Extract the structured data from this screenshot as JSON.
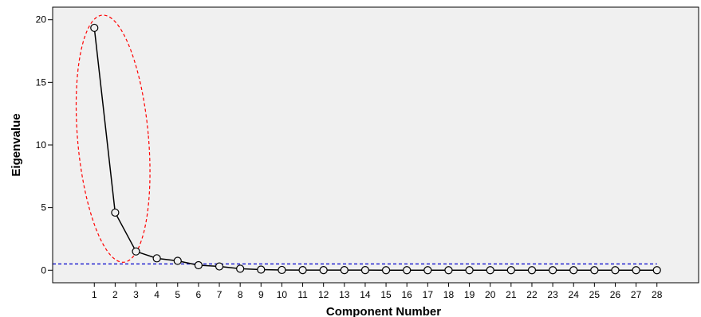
{
  "chart_data": {
    "type": "line",
    "title": "",
    "xlabel": "Component Number",
    "ylabel": "Eigenvalue",
    "x": [
      1,
      2,
      3,
      4,
      5,
      6,
      7,
      8,
      9,
      10,
      11,
      12,
      13,
      14,
      15,
      16,
      17,
      18,
      19,
      20,
      21,
      22,
      23,
      24,
      25,
      26,
      27,
      28
    ],
    "series": [
      {
        "values": [
          19.35,
          4.6,
          1.5,
          0.95,
          0.75,
          0.4,
          0.3,
          0.12,
          0.05,
          0.02,
          0.01,
          0.01,
          0.01,
          0.01,
          0.0,
          0.0,
          0.0,
          0.0,
          0.0,
          0.0,
          0.0,
          0.0,
          0.0,
          0.0,
          0.0,
          0.0,
          0.0,
          0.0
        ],
        "color": "#000000",
        "marker": "open-circle"
      }
    ],
    "xticks": [
      "1",
      "2",
      "3",
      "4",
      "5",
      "6",
      "7",
      "8",
      "9",
      "10",
      "11",
      "12",
      "13",
      "14",
      "15",
      "16",
      "17",
      "18",
      "19",
      "20",
      "21",
      "22",
      "23",
      "24",
      "25",
      "26",
      "27",
      "28"
    ],
    "yticks": [
      0,
      5,
      10,
      15,
      20
    ],
    "ylim": [
      -1,
      21
    ],
    "xlim": [
      -1,
      30
    ],
    "grid": false,
    "background_color": "#f0f0f0",
    "reference_line": {
      "y": 0.5,
      "x_from": -1,
      "x_to": 28,
      "color": "#0000cc",
      "style": "dashed"
    },
    "highlight_ellipse": {
      "x_from": 0.2,
      "x_to": 3.6,
      "y_from": 0.6,
      "y_to": 20.4,
      "angle_deg": -5,
      "color": "#ff0000",
      "style": "dashed"
    }
  }
}
